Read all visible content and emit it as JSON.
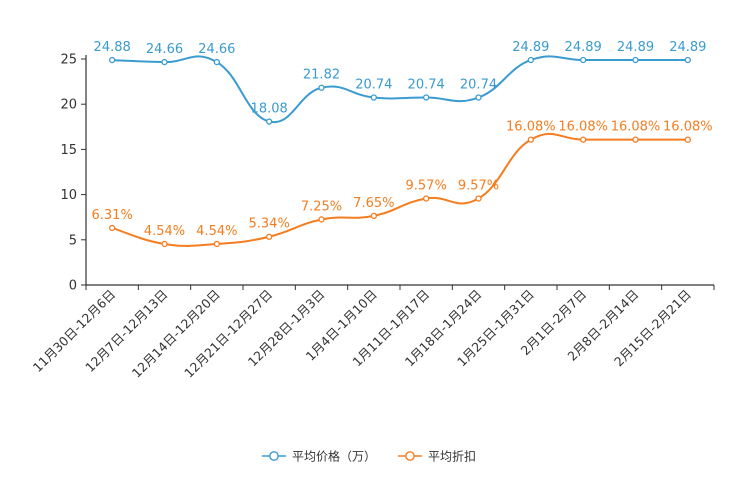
{
  "chart_data": {
    "type": "line",
    "title": "",
    "xlabel": "",
    "ylabel": "",
    "ylim": [
      0,
      25
    ],
    "yticks": [
      0,
      5,
      10,
      15,
      20,
      25
    ],
    "categories": [
      "11月30日-12月6日",
      "12月7日-12月13日",
      "12月14日-12月20日",
      "12月21日-12月27日",
      "12月28日-1月3日",
      "1月4日-1月10日",
      "1月11日-1月17日",
      "1月18日-1月24日",
      "1月25日-1月31日",
      "2月1日-2月7日",
      "2月8日-2月14日",
      "2月15日-2月21日"
    ],
    "series": [
      {
        "name": "平均价格（万）",
        "color": "#3a9bd0",
        "values": [
          24.88,
          24.66,
          24.66,
          18.08,
          21.82,
          20.74,
          20.74,
          20.74,
          24.89,
          24.89,
          24.89,
          24.89
        ],
        "labels": [
          "24.88",
          "24.66",
          "24.66",
          "18.08",
          "21.82",
          "20.74",
          "20.74",
          "20.74",
          "24.89",
          "24.89",
          "24.89",
          "24.89"
        ]
      },
      {
        "name": "平均折扣",
        "color": "#f47d20",
        "values": [
          6.31,
          4.54,
          4.54,
          5.34,
          7.25,
          7.65,
          9.57,
          9.57,
          16.08,
          16.08,
          16.08,
          16.08
        ],
        "labels": [
          "6.31%",
          "4.54%",
          "4.54%",
          "5.34%",
          "7.25%",
          "7.65%",
          "9.57%",
          "9.57%",
          "16.08%",
          "16.08%",
          "16.08%",
          "16.08%"
        ]
      }
    ],
    "legend_position": "bottom-center",
    "grid": false
  }
}
